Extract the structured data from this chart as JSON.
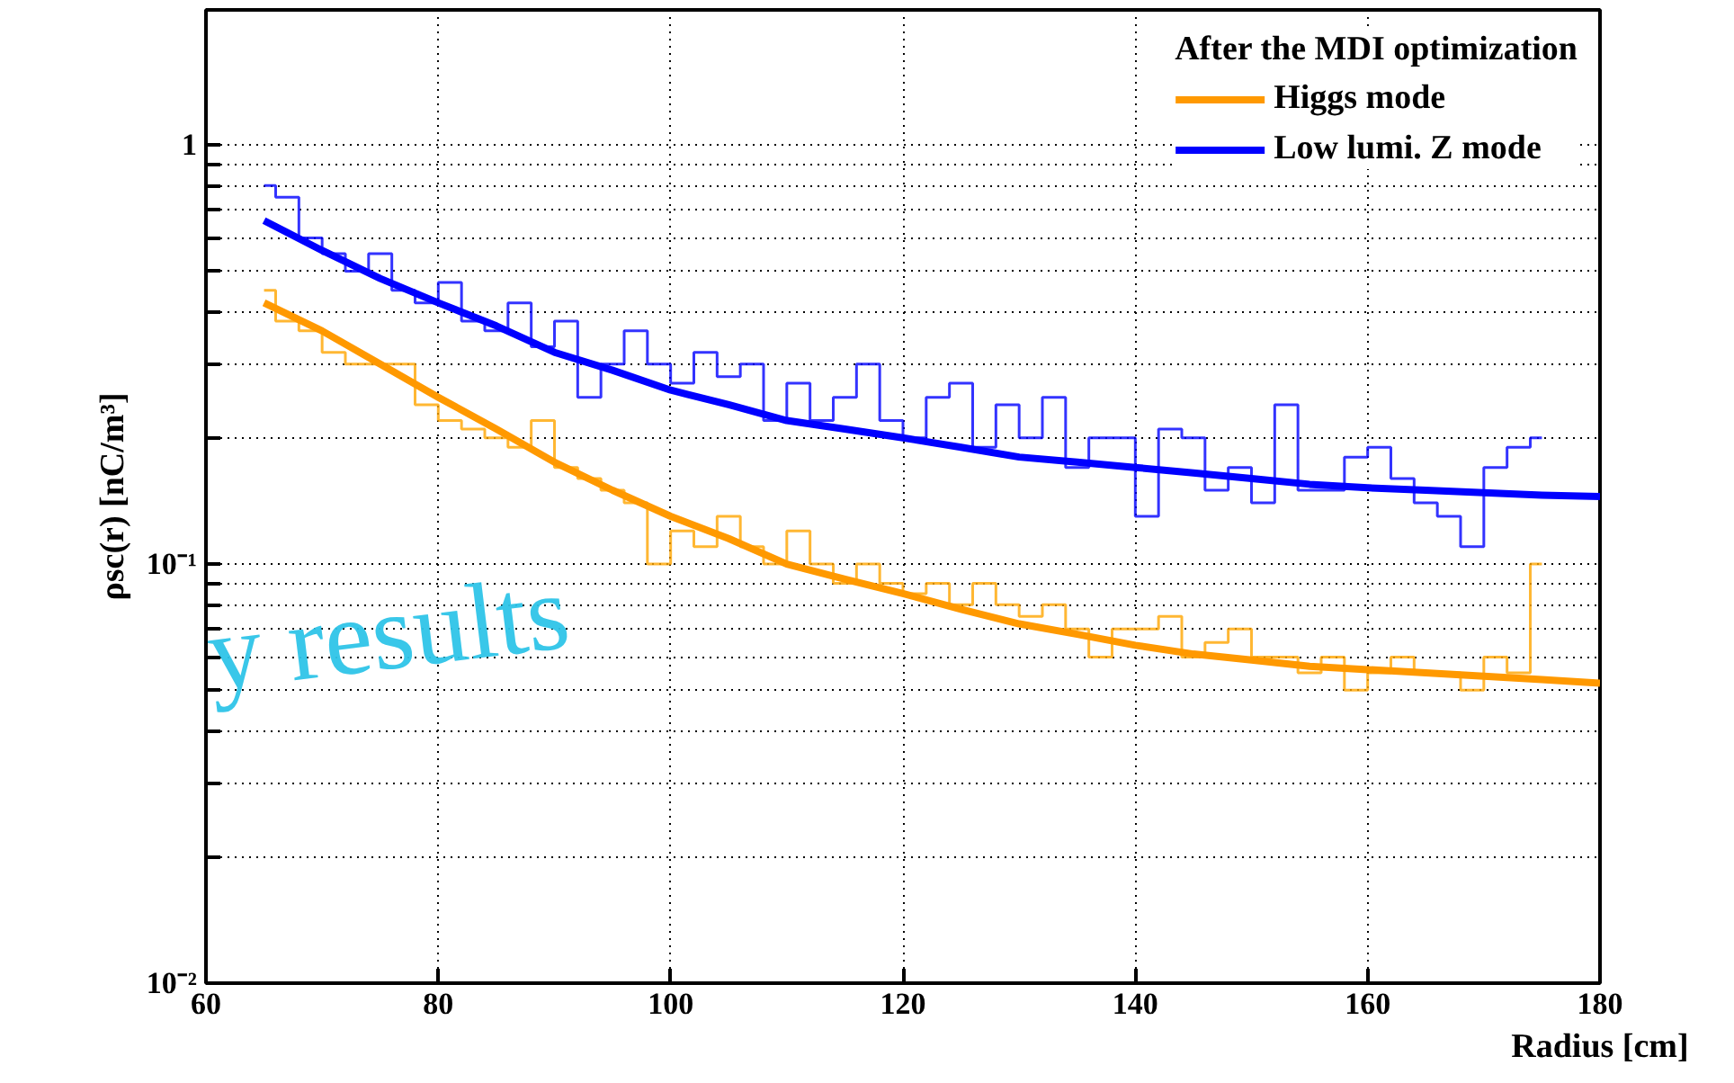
{
  "chart_data": {
    "type": "step",
    "xlabel": "Radius [cm]",
    "ylabel": "ρsc(r) [nC/m³]",
    "legend_title": "After the MDI optimization",
    "annotations": [
      "y results"
    ],
    "log": "y",
    "grid": true,
    "legend": "top right",
    "xlim": [
      60,
      180
    ],
    "xticks": [
      60,
      80,
      100,
      120,
      140,
      160,
      180
    ],
    "ylim": [
      0.01,
      2.1
    ],
    "yticks": [
      {
        "value": 0.01,
        "label": "10⁻²"
      },
      {
        "value": 0.02,
        "label": null
      },
      {
        "value": 0.03,
        "label": null
      },
      {
        "value": 0.04,
        "label": null
      },
      {
        "value": 0.05,
        "label": null
      },
      {
        "value": 0.06,
        "label": null
      },
      {
        "value": 0.07,
        "label": null
      },
      {
        "value": 0.08,
        "label": null
      },
      {
        "value": 0.09,
        "label": null
      },
      {
        "value": 0.1,
        "label": "10⁻¹"
      },
      {
        "value": 0.2,
        "label": null
      },
      {
        "value": 0.3,
        "label": null
      },
      {
        "value": 0.4,
        "label": null
      },
      {
        "value": 0.5,
        "label": null
      },
      {
        "value": 0.6,
        "label": null
      },
      {
        "value": 0.7,
        "label": null
      },
      {
        "value": 0.8,
        "label": null
      },
      {
        "value": 0.9,
        "label": null
      },
      1
    ],
    "series": [
      {
        "color": "#ffa500",
        "x": [
          65,
          67,
          69,
          71,
          73,
          75,
          77,
          79,
          81,
          83,
          85,
          87,
          89,
          91,
          93,
          95,
          97,
          99,
          101,
          103,
          105,
          107,
          109,
          111,
          113,
          115,
          117,
          119,
          121,
          123,
          125,
          127,
          129,
          131,
          133,
          135,
          137,
          139,
          141,
          143,
          145,
          147,
          149,
          151,
          153,
          155,
          157,
          159,
          161,
          163,
          165,
          167,
          169,
          171,
          173,
          175
        ],
        "values": [
          0.45,
          0.38,
          0.36,
          0.32,
          0.3,
          0.3,
          0.3,
          0.24,
          0.22,
          0.21,
          0.2,
          0.19,
          0.22,
          0.17,
          0.16,
          0.15,
          0.14,
          0.1,
          0.12,
          0.11,
          0.13,
          0.11,
          0.1,
          0.12,
          0.1,
          0.09,
          0.1,
          0.09,
          0.085,
          0.09,
          0.08,
          0.09,
          0.08,
          0.075,
          0.08,
          0.07,
          0.06,
          0.07,
          0.07,
          0.075,
          0.06,
          0.065,
          0.07,
          0.06,
          0.06,
          0.055,
          0.06,
          0.05,
          0.055,
          0.06,
          0.055,
          0.055,
          0.05,
          0.06,
          0.055,
          0.1
        ]
      },
      {
        "color": "#0000ff",
        "x": [
          65,
          67,
          69,
          71,
          73,
          75,
          77,
          79,
          81,
          83,
          85,
          87,
          89,
          91,
          93,
          95,
          97,
          99,
          101,
          103,
          105,
          107,
          109,
          111,
          113,
          115,
          117,
          119,
          121,
          123,
          125,
          127,
          129,
          131,
          133,
          135,
          137,
          139,
          141,
          143,
          145,
          147,
          149,
          151,
          153,
          155,
          157,
          159,
          161,
          163,
          165,
          167,
          169,
          171,
          173,
          175
        ],
        "values": [
          0.8,
          0.75,
          0.6,
          0.55,
          0.5,
          0.55,
          0.45,
          0.42,
          0.47,
          0.38,
          0.36,
          0.42,
          0.33,
          0.38,
          0.25,
          0.3,
          0.36,
          0.3,
          0.27,
          0.32,
          0.28,
          0.3,
          0.22,
          0.27,
          0.22,
          0.25,
          0.3,
          0.22,
          0.2,
          0.25,
          0.27,
          0.19,
          0.24,
          0.2,
          0.25,
          0.17,
          0.2,
          0.2,
          0.13,
          0.21,
          0.2,
          0.15,
          0.17,
          0.14,
          0.24,
          0.15,
          0.15,
          0.18,
          0.19,
          0.16,
          0.14,
          0.13,
          0.11,
          0.17,
          0.19,
          0.2
        ]
      },
      {
        "type": "line",
        "name": "Higgs mode",
        "color": "#ff9900",
        "x": [
          65,
          70,
          75,
          80,
          85,
          90,
          95,
          100,
          105,
          110,
          115,
          120,
          125,
          130,
          135,
          140,
          145,
          150,
          155,
          160,
          165,
          170,
          175,
          180
        ],
        "values": [
          0.42,
          0.36,
          0.3,
          0.25,
          0.21,
          0.175,
          0.15,
          0.13,
          0.115,
          0.1,
          0.092,
          0.085,
          0.078,
          0.072,
          0.068,
          0.064,
          0.061,
          0.059,
          0.057,
          0.056,
          0.055,
          0.054,
          0.053,
          0.052
        ]
      },
      {
        "type": "line",
        "name": "Low lumi. Z mode",
        "color": "#0000ff",
        "x": [
          65,
          70,
          75,
          80,
          85,
          90,
          95,
          100,
          105,
          110,
          115,
          120,
          125,
          130,
          135,
          140,
          145,
          150,
          155,
          160,
          165,
          170,
          175,
          180
        ],
        "values": [
          0.66,
          0.56,
          0.48,
          0.42,
          0.37,
          0.32,
          0.29,
          0.26,
          0.24,
          0.22,
          0.21,
          0.2,
          0.19,
          0.18,
          0.175,
          0.17,
          0.165,
          0.16,
          0.155,
          0.152,
          0.15,
          0.148,
          0.146,
          0.145
        ]
      }
    ]
  }
}
